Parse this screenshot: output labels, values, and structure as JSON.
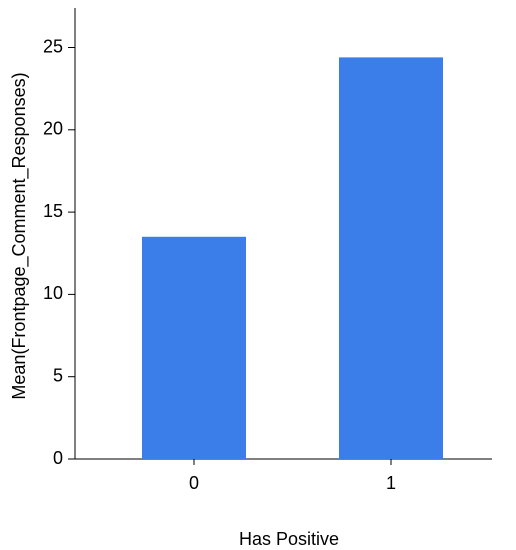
{
  "chart_data": {
    "type": "bar",
    "x_label": "Has Positive",
    "y_label": "Mean(Frontpage_Comment_Responses)",
    "categories": [
      "0",
      "1"
    ],
    "values": [
      13.5,
      24.4
    ],
    "color": "#3b7de9",
    "ylim": [
      0,
      27.4
    ],
    "yticks": [
      0,
      5,
      10,
      15,
      20,
      25
    ]
  }
}
